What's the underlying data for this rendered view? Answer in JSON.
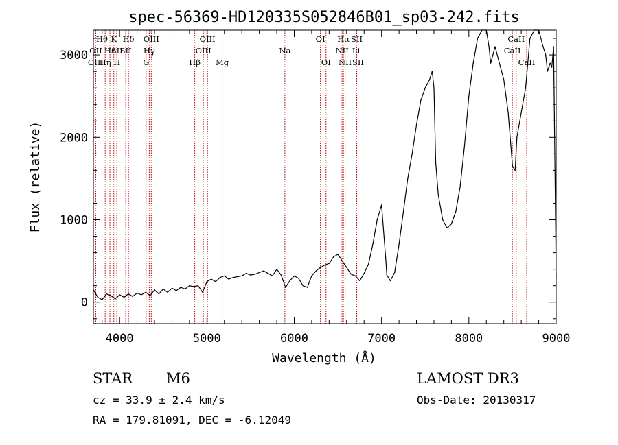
{
  "chart_data": {
    "type": "line",
    "title": "spec-56369-HD120335S052846B01_sp03-242.fits",
    "xlabel": "Wavelength (Å)",
    "ylabel": "Flux (relative)",
    "xlim": [
      3700,
      9000
    ],
    "ylim": [
      -260,
      3300
    ],
    "x_ticks": [
      4000,
      5000,
      6000,
      7000,
      8000,
      9000
    ],
    "x_tick_labels": [
      "4000",
      "5000",
      "6000",
      "7000",
      "8000",
      "9000"
    ],
    "y_ticks": [
      0,
      1000,
      2000,
      3000
    ],
    "y_tick_labels": [
      "0",
      "1000",
      "2000",
      "3000"
    ],
    "series": [
      {
        "name": "spectrum",
        "x": [
          3700,
          3750,
          3800,
          3850,
          3900,
          3950,
          4000,
          4050,
          4100,
          4150,
          4200,
          4250,
          4300,
          4350,
          4400,
          4450,
          4500,
          4550,
          4600,
          4650,
          4700,
          4750,
          4800,
          4850,
          4900,
          4950,
          5000,
          5050,
          5100,
          5150,
          5200,
          5250,
          5300,
          5350,
          5400,
          5450,
          5500,
          5550,
          5600,
          5650,
          5700,
          5750,
          5800,
          5850,
          5900,
          5950,
          6000,
          6050,
          6100,
          6150,
          6200,
          6250,
          6300,
          6350,
          6400,
          6450,
          6500,
          6550,
          6600,
          6650,
          6700,
          6750,
          6800,
          6850,
          6900,
          6950,
          7000,
          7050,
          7060,
          7100,
          7150,
          7200,
          7250,
          7300,
          7350,
          7400,
          7450,
          7500,
          7550,
          7580,
          7600,
          7620,
          7650,
          7700,
          7750,
          7800,
          7850,
          7900,
          7950,
          8000,
          8050,
          8100,
          8150,
          8200,
          8230,
          8250,
          8300,
          8350,
          8400,
          8450,
          8500,
          8530,
          8550,
          8600,
          8650,
          8700,
          8750,
          8800,
          8850,
          8880,
          8900,
          8930,
          8950,
          8970,
          9000
        ],
        "y": [
          150,
          60,
          30,
          100,
          80,
          40,
          90,
          60,
          100,
          70,
          110,
          90,
          120,
          80,
          150,
          100,
          160,
          120,
          170,
          140,
          180,
          160,
          200,
          190,
          200,
          120,
          250,
          280,
          250,
          300,
          320,
          280,
          300,
          310,
          320,
          350,
          330,
          340,
          360,
          380,
          350,
          320,
          400,
          330,
          180,
          260,
          320,
          290,
          200,
          180,
          320,
          380,
          420,
          450,
          470,
          550,
          580,
          500,
          420,
          340,
          320,
          260,
          350,
          460,
          700,
          1000,
          1180,
          500,
          330,
          260,
          360,
          700,
          1100,
          1500,
          1800,
          2150,
          2450,
          2600,
          2700,
          2800,
          2600,
          1700,
          1300,
          1000,
          900,
          950,
          1100,
          1400,
          1900,
          2500,
          2900,
          3200,
          3400,
          3300,
          3100,
          2900,
          3100,
          2900,
          2700,
          2300,
          1650,
          1600,
          2000,
          2300,
          2600,
          3200,
          3300,
          3300,
          3100,
          3000,
          2800,
          2900,
          2850,
          3100,
          300
        ]
      }
    ],
    "spectral_lines": [
      {
        "label": "Hθ",
        "x": 3798,
        "row": 1
      },
      {
        "label": "OII",
        "x": 3727,
        "row": 2
      },
      {
        "label": "OIII",
        "x": 3727,
        "row": 3
      },
      {
        "label": "Hη",
        "x": 3835,
        "row": 3
      },
      {
        "label": "Hε",
        "x": 3889,
        "row": 2
      },
      {
        "label": "K",
        "x": 3934,
        "row": 1
      },
      {
        "label": "SII",
        "x": 3969,
        "row": 2
      },
      {
        "label": "H",
        "x": 3969,
        "row": 3
      },
      {
        "label": "Hδ",
        "x": 4102,
        "row": 1
      },
      {
        "label": "SII",
        "x": 4070,
        "row": 2
      },
      {
        "label": "OIII",
        "x": 4363,
        "row": 1
      },
      {
        "label": "Hγ",
        "x": 4340,
        "row": 2
      },
      {
        "label": "G",
        "x": 4304,
        "row": 3
      },
      {
        "label": "Hβ",
        "x": 4861,
        "row": 3
      },
      {
        "label": "OIII",
        "x": 5007,
        "row": 1
      },
      {
        "label": "OIII",
        "x": 4959,
        "row": 2
      },
      {
        "label": "Mg",
        "x": 5175,
        "row": 3
      },
      {
        "label": "Na",
        "x": 5893,
        "row": 2
      },
      {
        "label": "OI",
        "x": 6300,
        "row": 1
      },
      {
        "label": "OI",
        "x": 6364,
        "row": 3
      },
      {
        "label": "Hα",
        "x": 6563,
        "row": 1
      },
      {
        "label": "SII",
        "x": 6716,
        "row": 1
      },
      {
        "label": "NII",
        "x": 6548,
        "row": 2
      },
      {
        "label": "Li",
        "x": 6708,
        "row": 2
      },
      {
        "label": "NII",
        "x": 6583,
        "row": 3
      },
      {
        "label": "SII",
        "x": 6731,
        "row": 3
      },
      {
        "label": "CaII",
        "x": 8542,
        "row": 1
      },
      {
        "label": "CaII",
        "x": 8498,
        "row": 2
      },
      {
        "label": "CaII",
        "x": 8662,
        "row": 3
      }
    ],
    "line_color": "#b00000"
  },
  "info": {
    "object_type": "STAR",
    "subclass": "M6",
    "survey": "LAMOST DR3",
    "cz": "cz = 33.9 ± 2.4 km/s",
    "obs_date": "Obs-Date: 20130317",
    "coords": "RA = 179.81091, DEC =  -6.12049"
  }
}
